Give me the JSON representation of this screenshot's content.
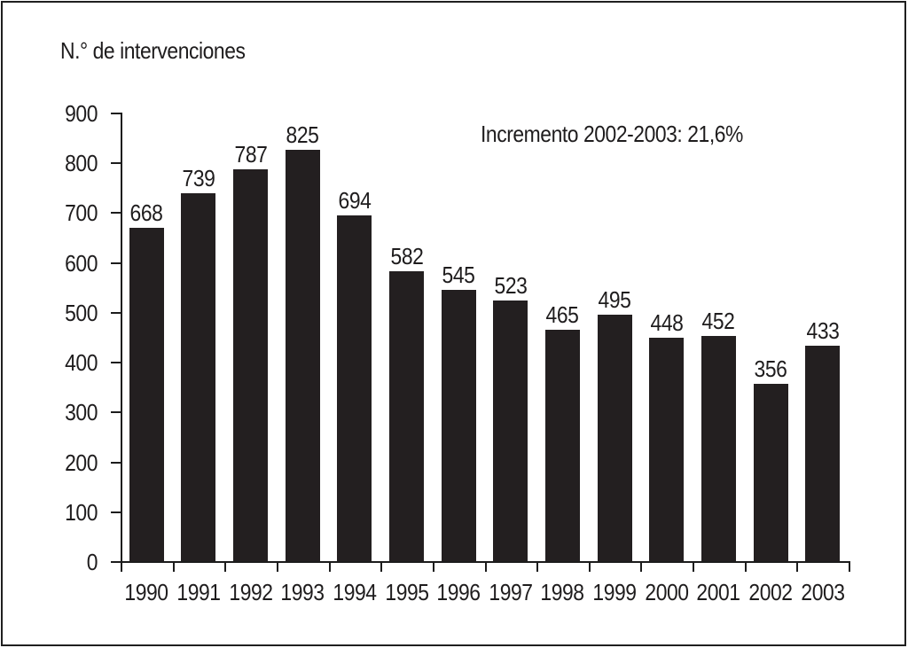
{
  "page": {
    "background_color": "#ffffff",
    "border_color": "#1f1f1f"
  },
  "chart_data": {
    "type": "bar",
    "title": "N.° de intervenciones",
    "title_position": "top-left",
    "annotation": "Incremento 2002-2003: 21,6%",
    "categories": [
      "1990",
      "1991",
      "1992",
      "1993",
      "1994",
      "1995",
      "1996",
      "1997",
      "1998",
      "1999",
      "2000",
      "2001",
      "2002",
      "2003"
    ],
    "values": [
      668,
      739,
      787,
      825,
      694,
      582,
      545,
      523,
      465,
      495,
      448,
      452,
      356,
      433
    ],
    "xlabel": "",
    "ylabel": "N.° de intervenciones",
    "ylim": [
      0,
      900
    ],
    "yticks": [
      0,
      100,
      200,
      300,
      400,
      500,
      600,
      700,
      800,
      900
    ],
    "grid": false,
    "legend": "none",
    "value_labels_shown": true,
    "bar_color": "#231f20",
    "axis_color": "#1c1c1c",
    "text_color": "#1e1c1d"
  }
}
